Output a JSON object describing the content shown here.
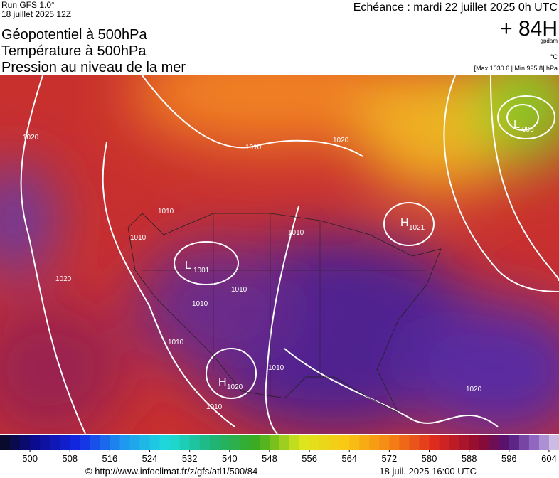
{
  "header": {
    "run": "Run GFS 1.0°",
    "date": "18 juillet 2025 12Z",
    "titles": [
      "Géopotentiel à 500hPa",
      "Température à 500hPa",
      "Pression au niveau de la mer"
    ],
    "echeance": "Echéance : mardi 22 juillet 2025 0h UTC",
    "lead": "+ 84H",
    "unit": "gpdam",
    "temp_unit": "°C",
    "range": "[Max 1030.6 | Min 995.8] hPa"
  },
  "map": {
    "centers": [
      {
        "label": "L",
        "value": "996"
      },
      {
        "label": "H",
        "value": "1021"
      },
      {
        "label": "L",
        "value": "1001"
      },
      {
        "label": "H",
        "value": "1020"
      }
    ],
    "isobar_labels": [
      "1020",
      "1010",
      "1010",
      "1010",
      "1010",
      "1020",
      "1010",
      "1010",
      "1010",
      "1020",
      "1010",
      "1010",
      "1020"
    ]
  },
  "colorbar": {
    "lim": [
      494,
      606
    ],
    "ticks": [
      500,
      508,
      516,
      524,
      532,
      540,
      548,
      556,
      564,
      572,
      580,
      588,
      596,
      604
    ]
  },
  "footer": {
    "url": "© http://www.infoclimat.fr/z/gfs/atl1/500/84",
    "stamp": "18 juil. 2025 16:00 UTC"
  }
}
